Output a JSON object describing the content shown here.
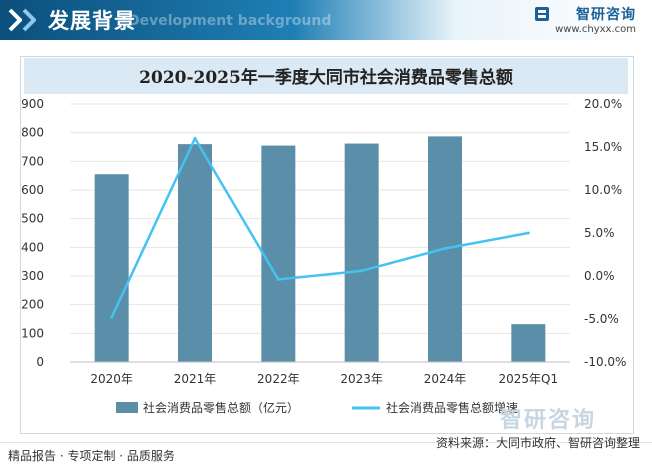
{
  "header": {
    "title": "发展背景",
    "title_bg": "Development background",
    "brand_name": "智研咨询",
    "brand_url": "www.chyxx.com"
  },
  "footer": {
    "left": "精品报告 · 专项定制 · 品质服务",
    "source": "资料来源：大同市政府、智研咨询整理",
    "watermark": "智研咨询"
  },
  "colors": {
    "bar": "#5b8ea8",
    "line": "#45c3f0",
    "header": "#0b4f7c"
  },
  "chart_data": {
    "type": "bar",
    "title": "2020-2025年一季度大同市社会消费品零售总额",
    "categories": [
      "2020年",
      "2021年",
      "2022年",
      "2023年",
      "2024年",
      "2025年Q1"
    ],
    "series": [
      {
        "name": "社会消费品零售总额（亿元）",
        "type": "bar",
        "axis": "left",
        "values": [
          655,
          760,
          755,
          762,
          787,
          132
        ]
      },
      {
        "name": "社会消费品零售总额增速",
        "type": "line",
        "axis": "right",
        "values": [
          -4.8,
          16.0,
          -0.4,
          0.6,
          3.2,
          5.0
        ]
      }
    ],
    "y_left": {
      "min": 0,
      "max": 900,
      "ticks": [
        "0",
        "100",
        "200",
        "300",
        "400",
        "500",
        "600",
        "700",
        "800",
        "900"
      ]
    },
    "y_right": {
      "min": -10,
      "max": 20,
      "ticks": [
        "-10.0%",
        "-5.0%",
        "0.0%",
        "5.0%",
        "10.0%",
        "15.0%",
        "20.0%"
      ]
    },
    "legend_position": "bottom"
  }
}
